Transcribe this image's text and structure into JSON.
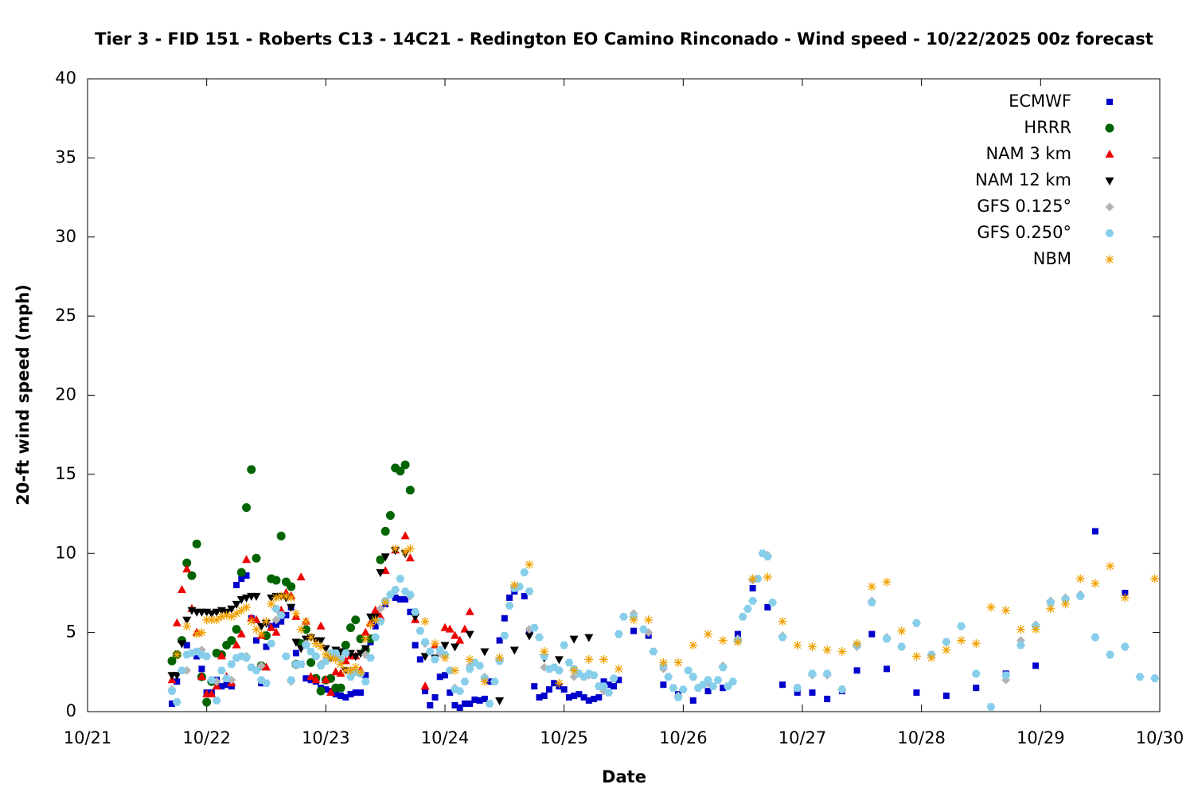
{
  "chart_data": {
    "type": "scatter",
    "title": "Tier 3 - FID 151 - Roberts C13 - 14C21 - Redington EO Camino Rinconado - Wind speed - 10/22/2025 00z forecast",
    "xlabel": "Date",
    "ylabel": "20-ft wind speed (mph)",
    "xlim": [
      0,
      216
    ],
    "ylim": [
      0,
      40
    ],
    "xticks": [
      {
        "value": 0,
        "label": "10/21"
      },
      {
        "value": 24,
        "label": "10/22"
      },
      {
        "value": 48,
        "label": "10/23"
      },
      {
        "value": 72,
        "label": "10/24"
      },
      {
        "value": 96,
        "label": "10/25"
      },
      {
        "value": 120,
        "label": "10/26"
      },
      {
        "value": 144,
        "label": "10/27"
      },
      {
        "value": 168,
        "label": "10/28"
      },
      {
        "value": 192,
        "label": "10/29"
      },
      {
        "value": 216,
        "label": "10/30"
      }
    ],
    "yticks": [
      0,
      5,
      10,
      15,
      20,
      25,
      30,
      35,
      40
    ],
    "legend": "top-right",
    "series": [
      {
        "name": "ECMWF",
        "color": "#0000cc",
        "marker": "square",
        "x": [
          17,
          18,
          20,
          22,
          23,
          24,
          25,
          26,
          27,
          28,
          29,
          30,
          31,
          32,
          33,
          34,
          35,
          36,
          37,
          38,
          39,
          40,
          41,
          42,
          43,
          44,
          45,
          46,
          47,
          48,
          49,
          50,
          51,
          52,
          53,
          54,
          55,
          56,
          57,
          58,
          60,
          62,
          63,
          64,
          65,
          66,
          67,
          68,
          69,
          70,
          71,
          72,
          73,
          74,
          75,
          76,
          77,
          78,
          79,
          80,
          81,
          83,
          84,
          85,
          86,
          88,
          89,
          90,
          91,
          92,
          93,
          94,
          95,
          96,
          97,
          98,
          99,
          100,
          101,
          102,
          103,
          104,
          105,
          106,
          107,
          110,
          113,
          116,
          119,
          122,
          125,
          128,
          131,
          134,
          137,
          140,
          143,
          146,
          149,
          152,
          155,
          158,
          161,
          167,
          173,
          179,
          185,
          191,
          203,
          209
        ],
        "values": [
          0.5,
          1.9,
          4.2,
          3.5,
          2.7,
          1.2,
          1.2,
          2.0,
          1.6,
          1.7,
          1.6,
          8.0,
          8.4,
          8.6,
          5.9,
          4.5,
          1.8,
          4.1,
          5.4,
          5.5,
          5.7,
          6.1,
          6.6,
          3.7,
          3.0,
          2.1,
          2.0,
          1.9,
          1.5,
          1.4,
          1.3,
          1.1,
          1.0,
          0.9,
          1.1,
          1.2,
          1.2,
          2.3,
          4.4,
          5.4,
          6.8,
          7.2,
          7.1,
          7.1,
          6.3,
          4.2,
          3.3,
          1.3,
          0.4,
          0.9,
          2.2,
          2.3,
          1.2,
          0.4,
          0.25,
          0.5,
          0.5,
          0.75,
          0.7,
          0.8,
          1.9,
          4.5,
          5.9,
          7.2,
          7.6,
          7.3,
          5.1,
          1.6,
          0.9,
          1.0,
          1.4,
          1.8,
          1.6,
          1.4,
          0.9,
          1.0,
          1.1,
          0.9,
          0.7,
          0.8,
          0.9,
          1.9,
          1.7,
          1.6,
          2.0,
          5.1,
          4.8,
          1.7,
          1.1,
          0.7,
          1.3,
          1.5,
          4.9,
          7.8,
          6.6,
          1.7,
          1.2,
          1.2,
          0.8,
          1.3,
          2.6,
          4.9,
          2.7,
          1.2,
          1.0,
          1.5,
          2.4,
          2.9,
          11.4,
          7.5
        ]
      },
      {
        "name": "HRRR",
        "color": "#006400",
        "marker": "circle",
        "x": [
          17,
          18,
          19,
          20,
          21,
          22,
          23,
          24,
          25,
          26,
          27,
          28,
          29,
          30,
          31,
          32,
          33,
          34,
          35,
          36,
          37,
          38,
          39,
          40,
          41,
          42,
          43,
          44,
          45,
          46,
          47,
          48,
          49,
          50,
          51,
          52,
          53,
          54,
          55,
          56,
          57,
          58,
          59,
          60,
          61,
          62,
          63,
          64,
          65
        ],
        "values": [
          3.2,
          3.6,
          4.5,
          9.4,
          8.6,
          10.6,
          2.2,
          0.6,
          1.9,
          3.7,
          3.6,
          4.2,
          4.5,
          5.2,
          8.8,
          12.9,
          15.3,
          9.7,
          2.9,
          4.8,
          8.4,
          8.3,
          11.1,
          8.2,
          7.9,
          3.0,
          4.3,
          5.2,
          3.1,
          2.1,
          1.3,
          2.0,
          2.1,
          1.5,
          1.5,
          4.2,
          5.3,
          5.8,
          4.6,
          3.9,
          4.6,
          5.9,
          9.6,
          11.4,
          12.4,
          15.4,
          15.2,
          15.6,
          14.0
        ]
      },
      {
        "name": "NAM 3 km",
        "color": "#ee0000",
        "marker": "triangle-up",
        "x": [
          17,
          18,
          19,
          20,
          21,
          22,
          23,
          24,
          25,
          26,
          27,
          28,
          29,
          30,
          31,
          32,
          33,
          34,
          35,
          36,
          37,
          38,
          39,
          40,
          41,
          42,
          43,
          44,
          45,
          46,
          47,
          48,
          49,
          50,
          51,
          52,
          53,
          54,
          55,
          56,
          57,
          58,
          59,
          60,
          62,
          64,
          65,
          66,
          68,
          70,
          72,
          73,
          74,
          75,
          76,
          77
        ],
        "values": [
          2.0,
          5.6,
          7.7,
          9.0,
          6.5,
          5.0,
          2.2,
          1.1,
          1.1,
          1.6,
          3.5,
          2.2,
          1.8,
          4.2,
          4.9,
          9.6,
          5.9,
          5.8,
          4.8,
          2.8,
          5.3,
          5.0,
          6.4,
          7.5,
          7.3,
          6.0,
          8.5,
          5.7,
          2.2,
          2.0,
          5.4,
          2.0,
          1.2,
          2.5,
          2.4,
          3.2,
          3.5,
          3.5,
          2.6,
          5.0,
          5.6,
          6.4,
          6.0,
          8.9,
          10.2,
          11.1,
          9.7,
          5.8,
          1.6,
          4.2,
          5.3,
          5.2,
          4.8,
          4.5,
          5.2,
          6.3
        ]
      },
      {
        "name": "NAM 12 km",
        "color": "#000000",
        "marker": "triangle-down",
        "x": [
          17,
          18,
          19,
          20,
          21,
          22,
          23,
          24,
          25,
          26,
          27,
          28,
          29,
          30,
          31,
          32,
          33,
          34,
          35,
          36,
          37,
          38,
          39,
          40,
          41,
          42,
          43,
          44,
          45,
          46,
          47,
          48,
          49,
          50,
          51,
          52,
          53,
          54,
          55,
          56,
          57,
          58,
          59,
          60,
          62,
          64,
          66,
          68,
          70,
          72,
          74,
          77,
          80,
          83,
          86,
          89,
          92,
          95,
          98,
          101
        ],
        "values": [
          2.3,
          2.3,
          4.3,
          5.8,
          6.4,
          6.3,
          6.3,
          6.3,
          6.2,
          6.3,
          6.4,
          6.3,
          6.5,
          6.8,
          7.1,
          7.2,
          7.3,
          7.3,
          5.4,
          5.6,
          7.2,
          7.3,
          7.3,
          7.2,
          6.6,
          4.4,
          4.0,
          4.6,
          4.7,
          4.5,
          4.5,
          4.0,
          3.4,
          3.9,
          3.8,
          2.6,
          3.7,
          3.5,
          3.7,
          4.0,
          6.0,
          6.0,
          8.8,
          9.8,
          10.2,
          10.0,
          6.0,
          3.5,
          3.4,
          4.2,
          4.1,
          4.9,
          3.8,
          0.7,
          3.9,
          4.8,
          3.4,
          3.3,
          4.6,
          4.7
        ]
      },
      {
        "name": "GFS 0.125°",
        "color": "#b4b4b4",
        "marker": "diamond",
        "x": [
          17,
          20,
          23,
          26,
          29,
          32,
          35,
          38,
          41,
          44,
          47,
          50,
          53,
          56,
          59,
          62,
          65,
          68,
          71,
          74,
          77,
          80,
          83,
          86,
          89,
          92,
          95,
          98,
          101,
          104,
          107,
          110,
          113,
          116,
          119,
          122,
          125,
          128,
          131,
          134,
          137,
          140,
          143,
          146,
          149,
          152,
          155,
          158,
          161,
          164,
          167,
          170,
          173,
          176,
          179,
          185,
          188,
          191,
          194,
          197,
          200,
          203,
          206,
          209,
          212,
          215
        ],
        "values": [
          1.4,
          2.6,
          3.9,
          1.9,
          2.0,
          3.5,
          2.9,
          5.8,
          1.9,
          4.3,
          3.0,
          3.6,
          2.6,
          3.6,
          6.5,
          7.7,
          7.3,
          4.3,
          3.7,
          1.5,
          2.9,
          2.2,
          3.3,
          7.9,
          5.2,
          2.8,
          2.6,
          2.2,
          2.3,
          1.3,
          4.9,
          6.2,
          5.0,
          2.7,
          1.0,
          2.2,
          1.8,
          2.9,
          4.6,
          8.3,
          9.9,
          4.8,
          1.5,
          2.3,
          2.3,
          1.4,
          4.1,
          7.0,
          4.7,
          4.1,
          5.6,
          3.6,
          4.4,
          5.4,
          2.4,
          2.0,
          4.5,
          5.5,
          7.0,
          7.2,
          7.4,
          4.7,
          3.6,
          4.1,
          2.2,
          2.1
        ]
      },
      {
        "name": "GFS 0.250°",
        "color": "#87ceeb",
        "marker": "pentagon",
        "x": [
          17,
          18,
          19,
          20,
          21,
          22,
          23,
          24,
          25,
          26,
          27,
          28,
          29,
          30,
          31,
          32,
          33,
          34,
          35,
          36,
          37,
          38,
          39,
          40,
          41,
          42,
          43,
          44,
          45,
          46,
          47,
          48,
          49,
          50,
          51,
          52,
          53,
          54,
          55,
          56,
          57,
          58,
          59,
          60,
          61,
          62,
          63,
          64,
          65,
          66,
          67,
          68,
          69,
          70,
          71,
          72,
          73,
          74,
          75,
          76,
          77,
          78,
          79,
          80,
          81,
          82,
          83,
          84,
          85,
          86,
          87,
          88,
          89,
          90,
          91,
          92,
          93,
          94,
          95,
          96,
          97,
          98,
          99,
          100,
          101,
          102,
          103,
          104,
          105,
          106,
          107,
          108,
          110,
          112,
          114,
          116,
          117,
          118,
          119,
          120,
          121,
          122,
          123,
          124,
          125,
          126,
          127,
          128,
          129,
          130,
          131,
          132,
          133,
          134,
          135,
          136,
          137,
          138,
          140,
          143,
          146,
          149,
          152,
          155,
          158,
          161,
          164,
          167,
          170,
          173,
          176,
          179,
          182,
          185,
          188,
          191,
          194,
          197,
          200,
          203,
          206,
          209,
          212,
          215
        ],
        "values": [
          1.3,
          0.6,
          2.6,
          3.6,
          3.7,
          3.8,
          3.6,
          3.5,
          2.0,
          0.7,
          2.6,
          2.1,
          3.0,
          3.4,
          3.5,
          3.4,
          2.8,
          2.6,
          2.0,
          1.8,
          4.3,
          6.5,
          6.1,
          3.5,
          2.0,
          3.0,
          3.0,
          4.2,
          3.8,
          3.5,
          2.9,
          3.2,
          3.7,
          3.7,
          3.3,
          3.7,
          2.2,
          2.5,
          2.4,
          1.9,
          3.4,
          4.7,
          5.7,
          7.0,
          7.4,
          7.7,
          8.4,
          7.6,
          7.4,
          6.3,
          5.1,
          4.4,
          3.8,
          3.3,
          3.9,
          3.6,
          2.6,
          1.4,
          1.3,
          1.9,
          2.7,
          3.1,
          2.9,
          2.1,
          0.5,
          1.9,
          3.2,
          4.8,
          6.7,
          7.8,
          7.9,
          8.8,
          7.6,
          5.3,
          4.7,
          3.5,
          2.7,
          2.8,
          2.6,
          4.2,
          3.1,
          2.7,
          2.4,
          2.2,
          2.4,
          2.3,
          1.6,
          1.6,
          1.2,
          2.1,
          4.9,
          6.0,
          6.0,
          5.2,
          3.8,
          2.9,
          2.2,
          1.5,
          0.9,
          1.4,
          2.6,
          2.2,
          1.5,
          1.7,
          2.0,
          1.6,
          2.0,
          2.8,
          1.6,
          1.9,
          4.5,
          6.0,
          6.5,
          7.0,
          8.4,
          10.0,
          9.8,
          6.9,
          4.7,
          1.5,
          2.4,
          2.4,
          1.4,
          4.2,
          6.9,
          4.6,
          4.1,
          5.6,
          3.6,
          4.4,
          5.4,
          2.4,
          0.3,
          2.3,
          4.2,
          5.4,
          6.9,
          7.1,
          7.3,
          4.7,
          3.6,
          4.1,
          2.2,
          2.1
        ]
      },
      {
        "name": "NBM",
        "color": "#f0a000",
        "marker": "asterisk",
        "x": [
          18,
          20,
          22,
          23,
          24,
          25,
          26,
          27,
          28,
          29,
          30,
          31,
          32,
          33,
          34,
          35,
          36,
          37,
          38,
          39,
          40,
          41,
          42,
          43,
          44,
          45,
          46,
          47,
          48,
          49,
          50,
          51,
          52,
          53,
          54,
          55,
          56,
          57,
          58,
          60,
          62,
          64,
          65,
          68,
          70,
          72,
          74,
          77,
          80,
          83,
          86,
          89,
          92,
          95,
          98,
          101,
          104,
          107,
          110,
          113,
          116,
          119,
          122,
          125,
          128,
          131,
          134,
          137,
          140,
          143,
          146,
          149,
          152,
          155,
          158,
          161,
          164,
          167,
          170,
          173,
          176,
          179,
          182,
          185,
          188,
          191,
          194,
          197,
          200,
          203,
          206,
          209,
          215
        ],
        "values": [
          3.6,
          5.4,
          4.9,
          5.0,
          5.8,
          5.8,
          5.8,
          6.0,
          6.1,
          6.0,
          6.2,
          6.4,
          6.6,
          5.7,
          5.2,
          4.9,
          5.7,
          6.8,
          7.2,
          7.3,
          7.3,
          7.2,
          6.2,
          5.2,
          5.7,
          4.7,
          4.3,
          4.1,
          3.6,
          3.4,
          3.3,
          3.0,
          2.6,
          2.6,
          2.8,
          2.5,
          4.6,
          5.5,
          5.8,
          6.9,
          10.3,
          10.1,
          10.3,
          5.7,
          4.3,
          3.4,
          2.6,
          3.3,
          1.9,
          3.4,
          8.0,
          9.3,
          3.8,
          1.8,
          2.6,
          3.3,
          3.3,
          2.7,
          5.8,
          5.8,
          3.1,
          3.1,
          4.2,
          4.9,
          4.5,
          4.4,
          8.4,
          8.5,
          5.7,
          4.2,
          4.1,
          3.9,
          3.8,
          4.3,
          7.9,
          8.2,
          5.1,
          3.5,
          3.4,
          3.9,
          4.5,
          4.3,
          6.6,
          6.4,
          5.2,
          5.2,
          6.5,
          6.8,
          8.4,
          8.1,
          9.2,
          7.2,
          8.4
        ]
      }
    ]
  }
}
